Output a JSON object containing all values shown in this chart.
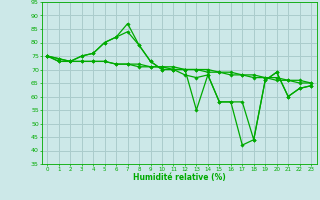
{
  "title": "",
  "xlabel": "Humidité relative (%)",
  "ylabel": "",
  "bg_color": "#cce8e8",
  "grid_color": "#aacccc",
  "line_color": "#00aa00",
  "marker_color": "#00aa00",
  "xlim": [
    -0.5,
    23.5
  ],
  "ylim": [
    35,
    95
  ],
  "xticks": [
    0,
    1,
    2,
    3,
    4,
    5,
    6,
    7,
    8,
    9,
    10,
    11,
    12,
    13,
    14,
    15,
    16,
    17,
    18,
    19,
    20,
    21,
    22,
    23
  ],
  "yticks": [
    35,
    40,
    45,
    50,
    55,
    60,
    65,
    70,
    75,
    80,
    85,
    90,
    95
  ],
  "series": [
    [
      75,
      73,
      73,
      75,
      76,
      80,
      82,
      87,
      79,
      73,
      70,
      70,
      70,
      55,
      68,
      58,
      58,
      42,
      44,
      66,
      69,
      60,
      63,
      64
    ],
    [
      75,
      73,
      73,
      75,
      76,
      80,
      82,
      84,
      79,
      73,
      70,
      70,
      68,
      67,
      68,
      58,
      58,
      58,
      44,
      66,
      69,
      60,
      63,
      64
    ],
    [
      75,
      74,
      73,
      73,
      73,
      73,
      72,
      72,
      72,
      71,
      71,
      71,
      70,
      70,
      70,
      69,
      69,
      68,
      68,
      67,
      67,
      66,
      66,
      65
    ],
    [
      75,
      74,
      73,
      73,
      73,
      73,
      72,
      72,
      71,
      71,
      71,
      70,
      70,
      70,
      69,
      69,
      68,
      68,
      67,
      67,
      66,
      66,
      65,
      65
    ]
  ]
}
